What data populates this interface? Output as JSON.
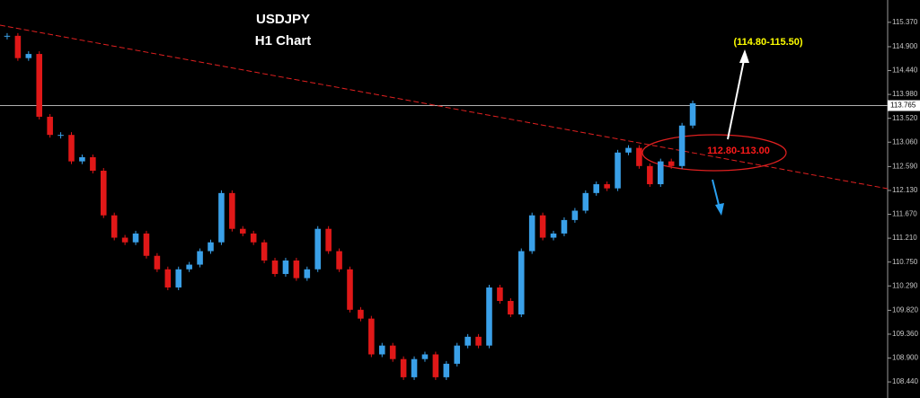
{
  "chart_data": {
    "type": "candlestick",
    "title": "USDJPY",
    "subtitle": "H1 Chart",
    "annotations": {
      "target": "(114.80-115.50)",
      "zone": "112.80-113.00"
    },
    "up_color": "#3aa0e8",
    "down_color": "#e01818",
    "values": [
      115.11,
      114.68,
      114.76,
      113.55,
      113.2,
      113.2,
      112.69,
      112.77,
      112.51,
      111.65,
      111.22,
      111.13,
      111.3,
      110.87,
      110.61,
      110.26,
      110.61,
      110.7,
      110.96,
      111.13,
      112.08,
      111.39,
      111.3,
      111.13,
      110.78,
      110.52,
      110.78,
      110.44,
      110.61,
      111.39,
      110.96,
      110.61,
      109.83,
      109.66,
      108.97,
      109.14,
      108.88,
      108.53,
      108.88,
      108.97,
      108.53,
      108.79,
      109.14,
      109.31,
      109.14,
      110.26,
      110.0,
      109.74,
      110.96,
      111.65,
      111.22,
      111.3,
      111.56,
      111.74,
      112.08,
      112.25,
      112.17,
      112.86,
      112.95,
      112.6,
      112.25,
      112.69,
      112.6,
      113.38,
      113.81
    ],
    "last_price": {
      "value": 113.765,
      "label": "113.765"
    },
    "ylim": [
      108.13,
      115.8
    ],
    "yticks": [
      {
        "value": 115.37,
        "label": "115.370"
      },
      {
        "value": 114.9,
        "label": "114.900"
      },
      {
        "value": 114.44,
        "label": "114.440"
      },
      {
        "value": 113.98,
        "label": "113.980"
      },
      {
        "value": 113.52,
        "label": "113.520"
      },
      {
        "value": 113.06,
        "label": "113.060"
      },
      {
        "value": 112.59,
        "label": "112.590"
      },
      {
        "value": 112.13,
        "label": "112.130"
      },
      {
        "value": 111.67,
        "label": "111.670"
      },
      {
        "value": 111.21,
        "label": "111.210"
      },
      {
        "value": 110.75,
        "label": "110.750"
      },
      {
        "value": 110.29,
        "label": "110.290"
      },
      {
        "value": 109.82,
        "label": "109.820"
      },
      {
        "value": 109.36,
        "label": "109.360"
      },
      {
        "value": 108.9,
        "label": "108.900"
      },
      {
        "value": 108.44,
        "label": "108.440"
      }
    ]
  }
}
